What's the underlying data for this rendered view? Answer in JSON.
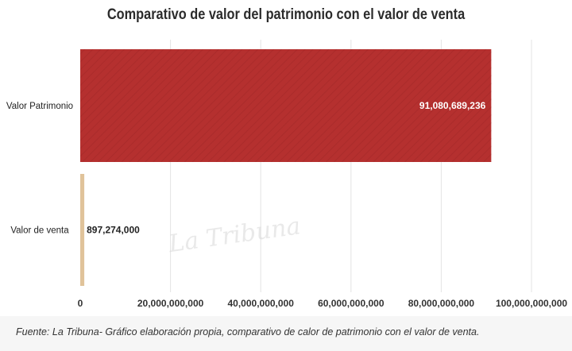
{
  "chart_data": {
    "type": "bar",
    "orientation": "horizontal",
    "title": "Comparativo de valor del patrimonio con el valor de venta",
    "categories": [
      "Valor Patrimonio",
      "Valor de venta"
    ],
    "values": [
      91080689236,
      897274000
    ],
    "data_labels": [
      "91,080,689,236",
      "897,274,000"
    ],
    "xlim": [
      0,
      100000000000
    ],
    "x_ticks": [
      0,
      20000000000,
      40000000000,
      60000000000,
      80000000000,
      100000000000
    ],
    "x_tick_labels": [
      "0",
      "20,000,000,000",
      "40,000,000,000",
      "60,000,000,000",
      "80,000,000,000",
      "100,000,000,000"
    ],
    "grid": "vertical",
    "legend": "none",
    "colors": [
      "#b5302f",
      "#e0c39a"
    ],
    "data_label_colors": [
      "#ffffff",
      "#222222"
    ]
  },
  "watermark": "La Tribuna",
  "source_note": "Fuente:  La Tribuna- Gráfico elaboración propia, comparativo de calor de patrimonio con el valor de venta."
}
